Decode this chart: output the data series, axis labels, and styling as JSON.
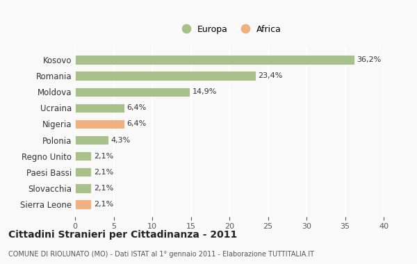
{
  "categories": [
    "Kosovo",
    "Romania",
    "Moldova",
    "Ucraina",
    "Nigeria",
    "Polonia",
    "Regno Unito",
    "Paesi Bassi",
    "Slovacchia",
    "Sierra Leone"
  ],
  "values": [
    36.2,
    23.4,
    14.9,
    6.4,
    6.4,
    4.3,
    2.1,
    2.1,
    2.1,
    2.1
  ],
  "labels": [
    "36,2%",
    "23,4%",
    "14,9%",
    "6,4%",
    "6,4%",
    "4,3%",
    "2,1%",
    "2,1%",
    "2,1%",
    "2,1%"
  ],
  "colors": [
    "#a8c08a",
    "#a8c08a",
    "#a8c08a",
    "#a8c08a",
    "#f0b080",
    "#a8c08a",
    "#a8c08a",
    "#a8c08a",
    "#a8c08a",
    "#f0b080"
  ],
  "europa_color": "#a8c08a",
  "africa_color": "#f0b080",
  "xlim": [
    0,
    40
  ],
  "xticks": [
    0,
    5,
    10,
    15,
    20,
    25,
    30,
    35,
    40
  ],
  "title": "Cittadini Stranieri per Cittadinanza - 2011",
  "subtitle": "COMUNE DI RIOLUNATO (MO) - Dati ISTAT al 1° gennaio 2011 - Elaborazione TUTTITALIA.IT",
  "bg_color": "#f9f9f9",
  "grid_color": "#ffffff",
  "bar_edge_color": "#ffffff"
}
